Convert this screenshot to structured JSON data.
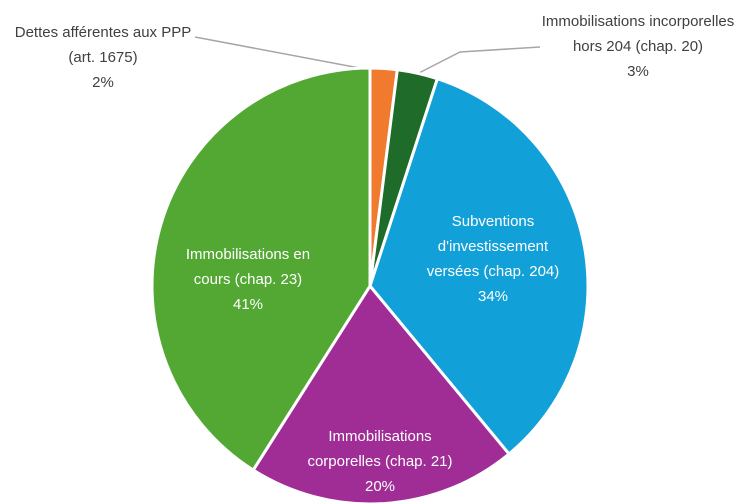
{
  "chart_data": {
    "type": "pie",
    "categories": [
      "Dettes afférentes aux PPP (art. 1675)",
      "Immobilisations incorporelles hors 204 (chap. 20)",
      "Subventions d'investissement versées (chap. 204)",
      "Immobilisations corporelles (chap. 21)",
      "Immobilisations en cours (chap. 23)"
    ],
    "values": [
      2,
      3,
      34,
      20,
      41
    ],
    "value_labels": [
      "2%",
      "3%",
      "34%",
      "20%",
      "41%"
    ],
    "colors": [
      "#f07a2e",
      "#1f6b2a",
      "#12a0d8",
      "#a02d96",
      "#52a833"
    ]
  }
}
